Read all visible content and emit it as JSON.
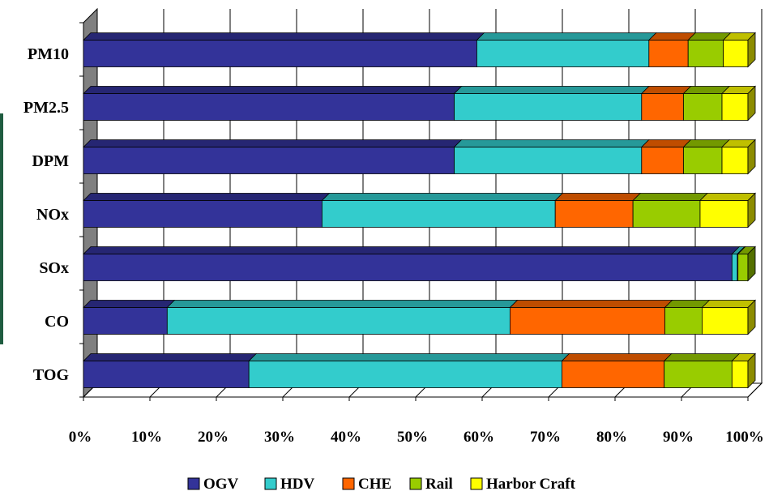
{
  "chart_data": {
    "type": "bar",
    "orientation": "horizontal",
    "stacked": true,
    "percent_stacked": true,
    "three_d": true,
    "title": "",
    "xlabel": "",
    "ylabel": "",
    "xlim": [
      0,
      100
    ],
    "x_ticks": [
      "0%",
      "10%",
      "20%",
      "30%",
      "40%",
      "50%",
      "60%",
      "70%",
      "80%",
      "90%",
      "100%"
    ],
    "grid": "vertical",
    "legend_position": "bottom",
    "categories": [
      "PM10",
      "PM2.5",
      "DPM",
      "NOx",
      "SOx",
      "CO",
      "TOG"
    ],
    "series": [
      {
        "name": "OGV",
        "color": "#333399",
        "values": [
          59.2,
          55.8,
          55.8,
          35.9,
          97.6,
          12.6,
          24.9
        ]
      },
      {
        "name": "HDV",
        "color": "#33CCCC",
        "values": [
          25.9,
          28.2,
          28.2,
          35.1,
          0.8,
          51.6,
          47.1
        ]
      },
      {
        "name": "CHE",
        "color": "#FF6600",
        "values": [
          5.9,
          6.3,
          6.3,
          11.7,
          0.1,
          23.3,
          15.4
        ]
      },
      {
        "name": "Rail",
        "color": "#99CC00",
        "values": [
          5.3,
          5.8,
          5.8,
          10.1,
          1.5,
          5.6,
          10.2
        ]
      },
      {
        "name": "Harbor Craft",
        "color": "#FFFF00",
        "values": [
          3.7,
          3.9,
          3.9,
          7.2,
          0.0,
          6.9,
          2.4
        ]
      }
    ]
  }
}
